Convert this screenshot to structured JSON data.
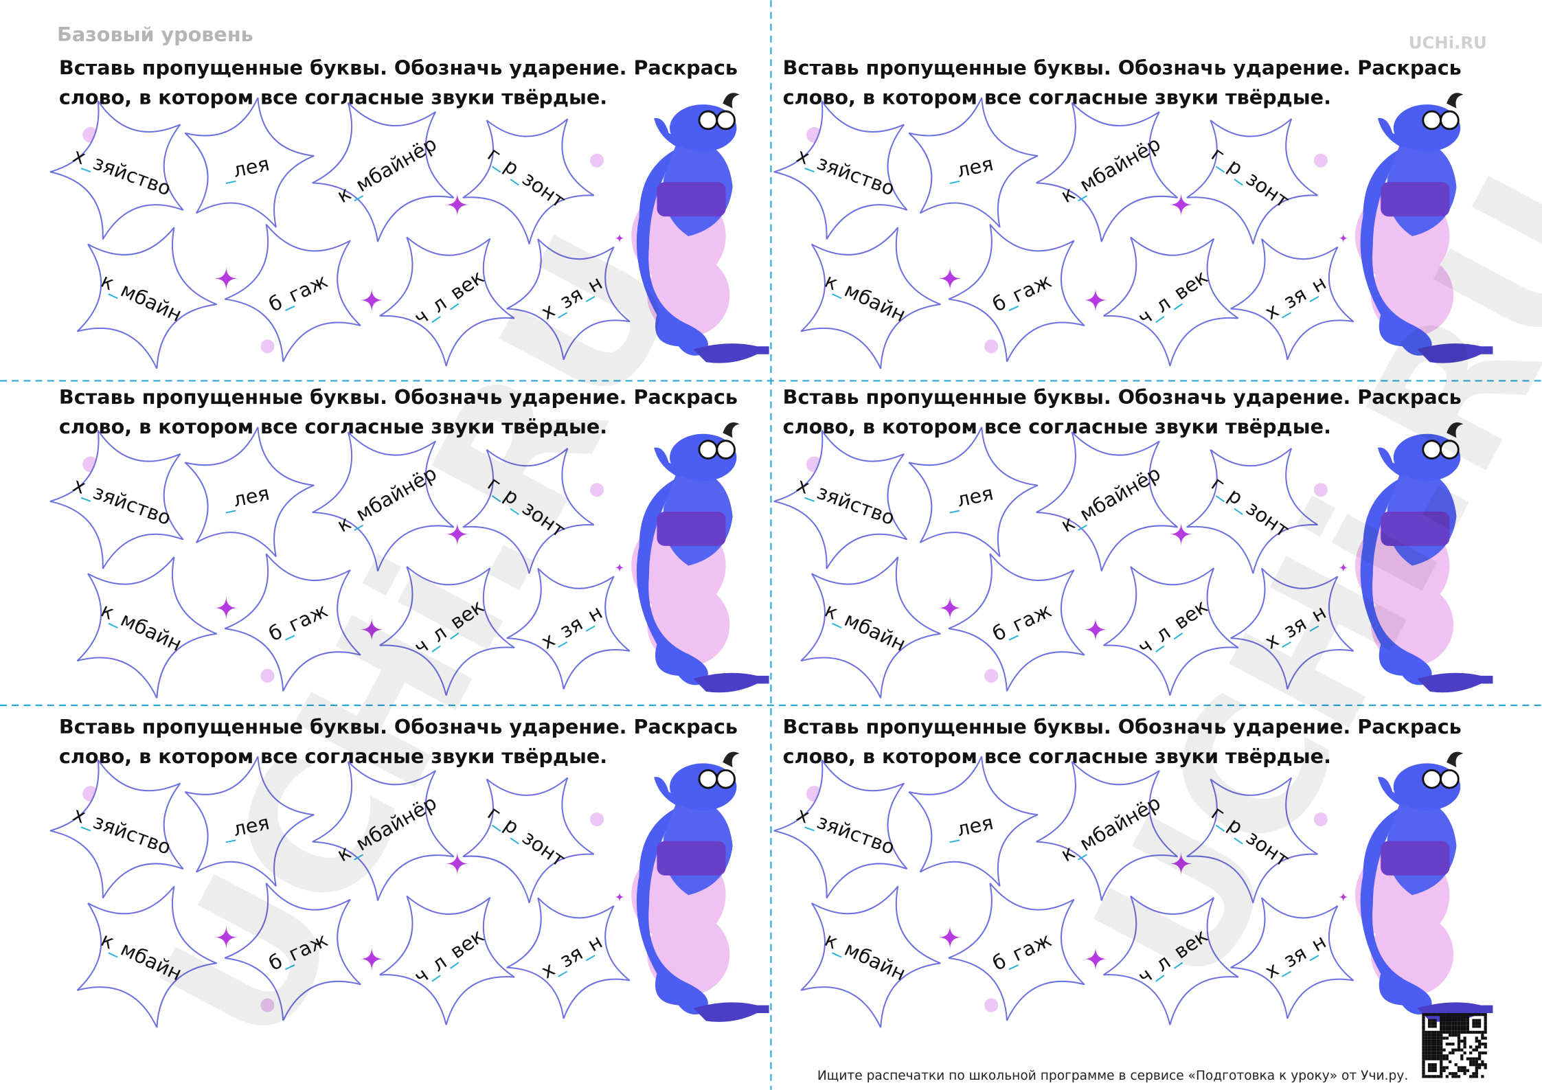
{
  "header": {
    "level": "Базовый уровень",
    "logo": "UCHi.RU"
  },
  "cards": [
    {
      "instruction": [
        "Вставь пропущенные буквы. Обозначь ударение. Раскрась",
        "слово, в котором все согласные звуки твёрдые."
      ],
      "words": [
        "х_зяйство",
        "_лея",
        "к_мбайнёр",
        "г_р_зонт",
        "к_мбайн",
        "б_гаж",
        "ч_л_век",
        "х_зя_н"
      ]
    },
    {
      "instruction": [
        "Вставь пропущенные буквы. Обозначь ударение. Раскрась",
        "слово, в котором все согласные звуки твёрдые."
      ],
      "words": [
        "х_зяйство",
        "_лея",
        "к_мбайнёр",
        "г_р_зонт",
        "к_мбайн",
        "б_гаж",
        "ч_л_век",
        "х_зя_н"
      ]
    },
    {
      "instruction": [
        "Вставь пропущенные буквы. Обозначь ударение. Раскрась",
        "слово, в котором все согласные звуки твёрдые."
      ],
      "words": [
        "х_зяйство",
        "_лея",
        "к_мбайнёр",
        "г_р_зонт",
        "к_мбайн",
        "б_гаж",
        "ч_л_век",
        "х_зя_н"
      ]
    },
    {
      "instruction": [
        "Вставь пропущенные буквы. Обозначь ударение. Раскрась",
        "слово, в котором все согласные звуки твёрдые."
      ],
      "words": [
        "х_зяйство",
        "_лея",
        "к_мбайнёр",
        "г_р_зонт",
        "к_мбайн",
        "б_гаж",
        "ч_л_век",
        "х_зя_н"
      ]
    },
    {
      "instruction": [
        "Вставь пропущенные буквы. Обозначь ударение. Раскрась",
        "слово, в котором все согласные звуки твёрдые."
      ],
      "words": [
        "х_зяйство",
        "_лея",
        "к_мбайнёр",
        "г_р_зонт",
        "к_мбайн",
        "б_гаж",
        "ч_л_век",
        "х_зя_н"
      ]
    },
    {
      "instruction": [
        "Вставь пропущенные буквы. Обозначь ударение. Раскрась",
        "слово, в котором все согласные звуки твёрдые."
      ],
      "words": [
        "х_зяйство",
        "_лея",
        "к_мбайнёр",
        "г_р_зонт",
        "к_мбайн",
        "б_гаж",
        "ч_л_век",
        "х_зя_н"
      ]
    }
  ],
  "footer": "Ищите распечатки по школьной программе в сервисе «Подготовка к уроку» от Учи.ру.",
  "watermark": "UCHi.RU"
}
